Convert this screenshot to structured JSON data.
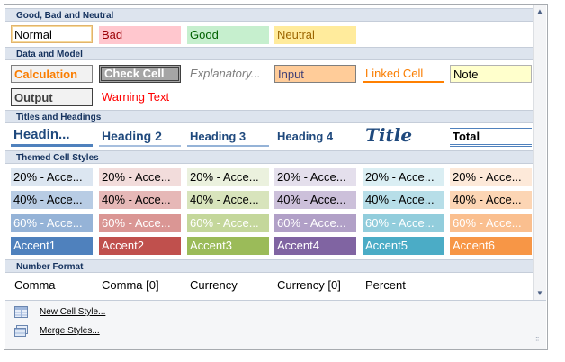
{
  "sections": {
    "good_bad_neutral": "Good, Bad and Neutral",
    "data_model": "Data and Model",
    "titles_headings": "Titles and Headings",
    "themed": "Themed Cell Styles",
    "number_format": "Number Format"
  },
  "styles": {
    "normal": "Normal",
    "bad": "Bad",
    "good": "Good",
    "neutral": "Neutral",
    "calculation": "Calculation",
    "check_cell": "Check Cell",
    "explanatory": "Explanatory...",
    "input": "Input",
    "linked_cell": "Linked Cell",
    "note": "Note",
    "output": "Output",
    "warning_text": "Warning Text",
    "heading1": "Headin...",
    "heading2": "Heading 2",
    "heading3": "Heading 3",
    "heading4": "Heading 4",
    "title": "Title",
    "total": "Total",
    "themed20": [
      "20% - Acce...",
      "20% - Acce...",
      "20% - Acce...",
      "20% - Acce...",
      "20% - Acce...",
      "20% - Acce..."
    ],
    "themed40": [
      "40% - Acce...",
      "40% - Acce...",
      "40% - Acce...",
      "40% - Acce...",
      "40% - Acce...",
      "40% - Acce..."
    ],
    "themed60": [
      "60% - Acce...",
      "60% - Acce...",
      "60% - Acce...",
      "60% - Acce...",
      "60% - Acce...",
      "60% - Acce..."
    ],
    "accent": [
      "Accent1",
      "Accent2",
      "Accent3",
      "Accent4",
      "Accent5",
      "Accent6"
    ],
    "comma": "Comma",
    "comma0": "Comma [0]",
    "currency": "Currency",
    "currency0": "Currency [0]",
    "percent": "Percent"
  },
  "menu": {
    "new_cell_style": "New Cell Style...",
    "merge_styles": "Merge Styles..."
  },
  "colors": {
    "accent1": "#4f81bd",
    "accent2": "#c0504d",
    "accent3": "#9bbb59",
    "accent4": "#8064a2",
    "accent5": "#4bacc6",
    "accent6": "#f79646"
  }
}
